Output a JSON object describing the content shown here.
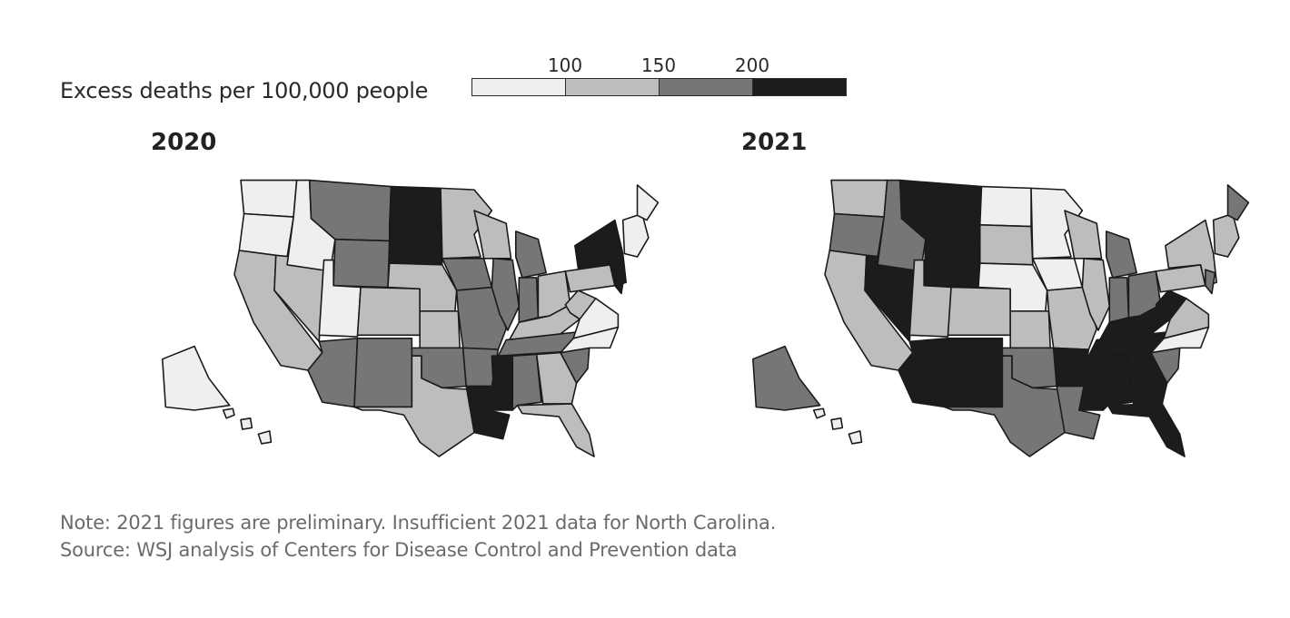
{
  "legend": {
    "title": "Excess deaths per 100,000 people",
    "bins": [
      {
        "name": "under-100",
        "color": "#efefef"
      },
      {
        "name": "100-150",
        "color": "#bdbdbd"
      },
      {
        "name": "150-200",
        "color": "#767676"
      },
      {
        "name": "over-200",
        "color": "#1c1c1c"
      }
    ],
    "ticks": [
      "100",
      "150",
      "200"
    ]
  },
  "maps": [
    {
      "title": "2020",
      "fills": {
        "WA": 0,
        "OR": 0,
        "CA": 1,
        "NV": 1,
        "ID": 0,
        "MT": 2,
        "WY": 2,
        "UT": 0,
        "AZ": 2,
        "CO": 1,
        "NM": 2,
        "ND": 3,
        "SD": 3,
        "NE": 1,
        "KS": 1,
        "OK": 2,
        "TX": 1,
        "MN": 1,
        "IA": 2,
        "MO": 2,
        "AR": 2,
        "LA": 3,
        "WI": 1,
        "IL": 2,
        "MI": 2,
        "IN": 2,
        "OH": 1,
        "KY": 1,
        "TN": 2,
        "MS": 3,
        "AL": 2,
        "GA": 1,
        "FL": 1,
        "SC": 2,
        "NC": 0,
        "VA": 0,
        "WV": 1,
        "PA": 1,
        "NY": 3,
        "NJ": 3,
        "ME": 0,
        "NE_NEW": 0,
        "AK": 0,
        "HI": 0
      }
    },
    {
      "title": "2021",
      "fills": {
        "WA": 1,
        "OR": 2,
        "CA": 1,
        "NV": 3,
        "ID": 2,
        "MT": 3,
        "WY": 3,
        "UT": 1,
        "AZ": 3,
        "CO": 1,
        "NM": 3,
        "ND": 0,
        "SD": 1,
        "NE": 0,
        "KS": 1,
        "OK": 2,
        "TX": 2,
        "MN": 0,
        "IA": 0,
        "MO": 1,
        "AR": 3,
        "LA": 2,
        "WI": 1,
        "IL": 1,
        "MI": 2,
        "IN": 2,
        "OH": 2,
        "KY": 3,
        "TN": 3,
        "MS": 3,
        "AL": 3,
        "GA": 3,
        "FL": 3,
        "SC": 2,
        "NC": 0,
        "VA": 1,
        "WV": 3,
        "PA": 1,
        "NY": 1,
        "NJ": 2,
        "ME": 2,
        "NE_NEW": 1,
        "AK": 2,
        "HI": 0
      }
    }
  ],
  "note": "Note: 2021 figures are preliminary. Insufficient 2021 data for North Carolina.",
  "source": "Source: WSJ analysis of Centers for Disease Control and Prevention data"
}
